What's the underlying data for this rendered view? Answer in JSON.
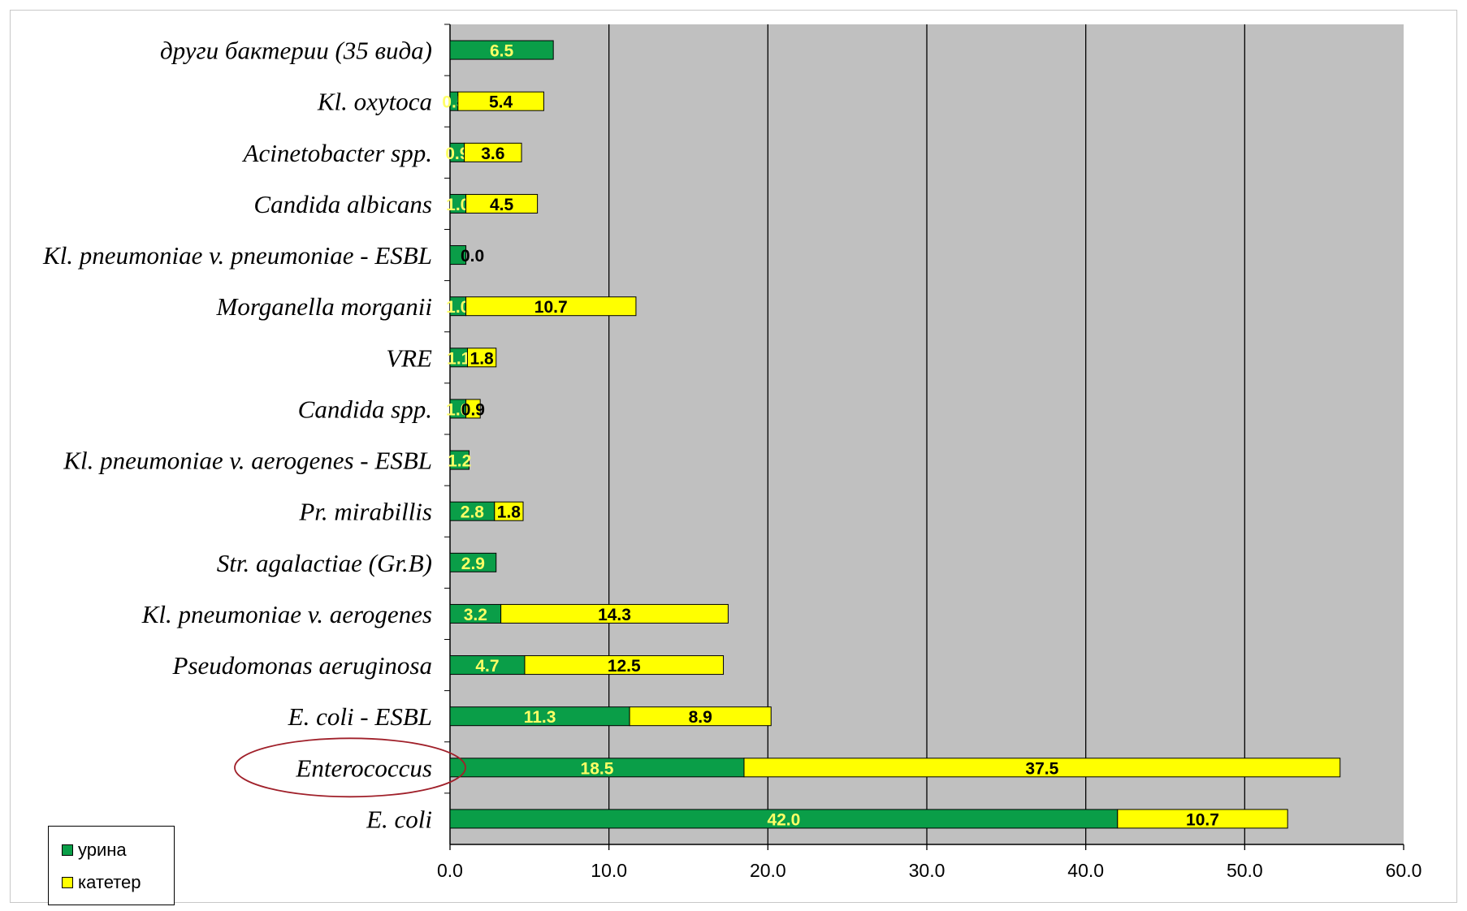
{
  "chart_data": {
    "type": "bar",
    "orientation": "horizontal",
    "stacked": true,
    "categories": [
      "E. coli",
      "Enterococcus",
      "E. coli - ESBL",
      "Pseudomonas aeruginosa",
      "Kl. pneumoniae v. aerogenes",
      "Str. agalactiae (Gr.B)",
      "Pr. mirabillis",
      "Kl. pneumoniae v. aerogenes - ESBL",
      "Candida spp.",
      "VRE",
      "Morganella morganii",
      "Kl. pneumoniae v. pneumoniae - ESBL",
      "Candida albicans",
      "Acinetobacter spp.",
      "Kl. oxytoca",
      "други бактерии (35 вида)"
    ],
    "series": [
      {
        "name": "урина",
        "color": "#0a9e48",
        "values": [
          42.0,
          18.5,
          11.3,
          4.7,
          3.2,
          2.9,
          2.8,
          1.2,
          1.0,
          1.1,
          1.0,
          1.0,
          1.0,
          0.9,
          0.5,
          6.5
        ],
        "labels": [
          "42.0",
          "18.5",
          "11.3",
          "4.7",
          "3.2",
          "2.9",
          "2.8",
          "1.2",
          "1.0",
          "1.1",
          "1.0",
          "",
          "1.0",
          "0.9",
          "0.5",
          "6.5"
        ]
      },
      {
        "name": "катетер",
        "color": "#ffff00",
        "values": [
          10.7,
          37.5,
          8.9,
          12.5,
          14.3,
          0.0,
          1.8,
          0.0,
          0.9,
          1.8,
          10.7,
          0.0,
          4.5,
          3.6,
          5.4,
          0.0
        ],
        "labels": [
          "10.7",
          "37.5",
          "8.9",
          "12.5",
          "14.3",
          "",
          "1.8",
          "",
          "0.9",
          "1.8",
          "10.7",
          "0.0",
          "4.5",
          "3.6",
          "5.4",
          ""
        ]
      }
    ],
    "xlim": [
      0,
      60
    ],
    "x_ticks": [
      "0.0",
      "10.0",
      "20.0",
      "30.0",
      "40.0",
      "50.0",
      "60.0"
    ],
    "plot_background": "#c0c0c0",
    "vertical_gridlines": true,
    "highlighted_category": "Enterococcus",
    "highlight_color": "#a0202a",
    "legend_position": "bottom-left",
    "xlabel": "",
    "ylabel": "",
    "title": ""
  }
}
